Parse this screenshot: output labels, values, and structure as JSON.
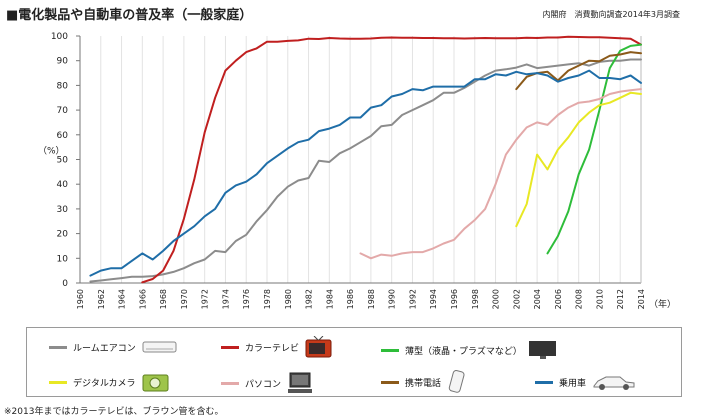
{
  "header": {
    "title": "■電化製品や自動車の普及率（一般家庭）",
    "source": "内閣府　消費動向調査2014年3月調査"
  },
  "footnote": "※2013年まではカラーテレビは、ブラウン管を含む。",
  "chart_data": {
    "type": "line",
    "title": "■電化製品や自動車の普及率（一般家庭）",
    "ylabel": "（%）",
    "xlabel": "（年）",
    "xlim": [
      1960,
      2014
    ],
    "ylim": [
      0,
      100
    ],
    "x_ticks": [
      1960,
      1962,
      1964,
      1966,
      1968,
      1970,
      1972,
      1974,
      1976,
      1978,
      1980,
      1982,
      1984,
      1986,
      1988,
      1990,
      1992,
      1994,
      1996,
      1998,
      2000,
      2002,
      2004,
      2006,
      2008,
      2010,
      2012,
      2014
    ],
    "y_ticks": [
      0,
      10,
      20,
      30,
      40,
      50,
      60,
      70,
      80,
      90,
      100
    ],
    "grid": "vertical",
    "legend_position": "bottom",
    "series": [
      {
        "name": "ルームエアコン",
        "color": "#8c8c8c",
        "icon": "air-conditioner-icon",
        "points": [
          [
            1961,
            0.6
          ],
          [
            1962,
            1
          ],
          [
            1963,
            1.5
          ],
          [
            1964,
            2
          ],
          [
            1965,
            2.5
          ],
          [
            1966,
            2.5
          ],
          [
            1967,
            2.8
          ],
          [
            1968,
            3.5
          ],
          [
            1969,
            4.5
          ],
          [
            1970,
            6
          ],
          [
            1971,
            8
          ],
          [
            1972,
            9.5
          ],
          [
            1973,
            13
          ],
          [
            1974,
            12.5
          ],
          [
            1975,
            17
          ],
          [
            1976,
            19.5
          ],
          [
            1977,
            25
          ],
          [
            1978,
            29.5
          ],
          [
            1979,
            35
          ],
          [
            1980,
            39
          ],
          [
            1981,
            41.5
          ],
          [
            1982,
            42.5
          ],
          [
            1983,
            49.5
          ],
          [
            1984,
            49
          ],
          [
            1985,
            52.5
          ],
          [
            1986,
            54.5
          ],
          [
            1987,
            57
          ],
          [
            1988,
            59.5
          ],
          [
            1989,
            63.5
          ],
          [
            1990,
            64
          ],
          [
            1991,
            68
          ],
          [
            1992,
            70
          ],
          [
            1993,
            72
          ],
          [
            1994,
            74
          ],
          [
            1995,
            77
          ],
          [
            1996,
            77
          ],
          [
            1997,
            79
          ],
          [
            1998,
            81.5
          ],
          [
            1999,
            84
          ],
          [
            2000,
            86
          ],
          [
            2001,
            86.5
          ],
          [
            2002,
            87.2
          ],
          [
            2003,
            88.5
          ],
          [
            2004,
            87
          ],
          [
            2005,
            87.5
          ],
          [
            2006,
            88
          ],
          [
            2007,
            88.5
          ],
          [
            2008,
            89
          ],
          [
            2009,
            88
          ],
          [
            2010,
            89.5
          ],
          [
            2011,
            90
          ],
          [
            2012,
            90
          ],
          [
            2013,
            90.5
          ],
          [
            2014,
            90.5
          ]
        ]
      },
      {
        "name": "カラーテレビ",
        "color": "#c01f1f",
        "icon": "color-tv-icon",
        "points": [
          [
            1966,
            0.3
          ],
          [
            1967,
            1.6
          ],
          [
            1968,
            5
          ],
          [
            1969,
            13
          ],
          [
            1970,
            26
          ],
          [
            1971,
            42
          ],
          [
            1972,
            61
          ],
          [
            1973,
            75
          ],
          [
            1974,
            86
          ],
          [
            1975,
            90
          ],
          [
            1976,
            93.5
          ],
          [
            1977,
            95
          ],
          [
            1978,
            97.7
          ],
          [
            1979,
            97.7
          ],
          [
            1980,
            98
          ],
          [
            1981,
            98.2
          ],
          [
            1982,
            98.9
          ],
          [
            1983,
            98.8
          ],
          [
            1984,
            99.2
          ],
          [
            1985,
            99
          ],
          [
            1986,
            98.9
          ],
          [
            1987,
            98.9
          ],
          [
            1988,
            99
          ],
          [
            1989,
            99.3
          ],
          [
            1990,
            99.4
          ],
          [
            1991,
            99.3
          ],
          [
            1992,
            99.3
          ],
          [
            1993,
            99.2
          ],
          [
            1994,
            99.2
          ],
          [
            1995,
            99.1
          ],
          [
            1996,
            99.1
          ],
          [
            1997,
            99
          ],
          [
            1998,
            99.1
          ],
          [
            1999,
            99.2
          ],
          [
            2000,
            99.1
          ],
          [
            2001,
            99.1
          ],
          [
            2002,
            99.1
          ],
          [
            2003,
            99.3
          ],
          [
            2004,
            99.2
          ],
          [
            2005,
            99.4
          ],
          [
            2006,
            99.4
          ],
          [
            2007,
            99.7
          ],
          [
            2008,
            99.6
          ],
          [
            2009,
            99.5
          ],
          [
            2010,
            99.5
          ],
          [
            2011,
            99.3
          ],
          [
            2012,
            99.1
          ],
          [
            2013,
            98.9
          ],
          [
            2014,
            96.5
          ]
        ]
      },
      {
        "name": "薄型（液晶・プラズマなど）",
        "color": "#2ebd3a",
        "icon": "flat-tv-icon",
        "points": [
          [
            2005,
            12
          ],
          [
            2006,
            19
          ],
          [
            2007,
            29
          ],
          [
            2008,
            44
          ],
          [
            2009,
            54
          ],
          [
            2010,
            70
          ],
          [
            2011,
            87
          ],
          [
            2012,
            94
          ],
          [
            2013,
            96
          ],
          [
            2014,
            96.5
          ]
        ]
      },
      {
        "name": "デジタルカメラ",
        "color": "#e8e824",
        "icon": "digital-camera-icon",
        "points": [
          [
            2002,
            23
          ],
          [
            2003,
            32
          ],
          [
            2004,
            52
          ],
          [
            2005,
            46
          ],
          [
            2006,
            54
          ],
          [
            2007,
            59
          ],
          [
            2008,
            65
          ],
          [
            2009,
            69
          ],
          [
            2010,
            72
          ],
          [
            2011,
            73
          ],
          [
            2012,
            75
          ],
          [
            2013,
            77
          ],
          [
            2014,
            76.5
          ]
        ]
      },
      {
        "name": "パソコン",
        "color": "#e3a9a9",
        "icon": "pc-icon",
        "points": [
          [
            1987,
            12
          ],
          [
            1988,
            10
          ],
          [
            1989,
            11.5
          ],
          [
            1990,
            11
          ],
          [
            1991,
            12
          ],
          [
            1992,
            12.5
          ],
          [
            1993,
            12.5
          ],
          [
            1994,
            14
          ],
          [
            1995,
            16
          ],
          [
            1996,
            17.5
          ],
          [
            1997,
            22
          ],
          [
            1998,
            25.5
          ],
          [
            1999,
            30
          ],
          [
            2000,
            40
          ],
          [
            2001,
            52
          ],
          [
            2002,
            58
          ],
          [
            2003,
            63
          ],
          [
            2004,
            65
          ],
          [
            2005,
            64
          ],
          [
            2006,
            68
          ],
          [
            2007,
            71
          ],
          [
            2008,
            73
          ],
          [
            2009,
            73.5
          ],
          [
            2010,
            74.5
          ],
          [
            2011,
            76.5
          ],
          [
            2012,
            77.5
          ],
          [
            2013,
            78
          ],
          [
            2014,
            78.5
          ]
        ]
      },
      {
        "name": "携帯電話",
        "color": "#8b5a1a",
        "icon": "mobile-phone-icon",
        "points": [
          [
            2002,
            78.5
          ],
          [
            2003,
            83.5
          ],
          [
            2004,
            85
          ],
          [
            2005,
            85.5
          ],
          [
            2006,
            82
          ],
          [
            2007,
            86
          ],
          [
            2008,
            88
          ],
          [
            2009,
            90
          ],
          [
            2010,
            89.8
          ],
          [
            2011,
            92
          ],
          [
            2012,
            92.5
          ],
          [
            2013,
            93.5
          ],
          [
            2014,
            93
          ]
        ]
      },
      {
        "name": "乗用車",
        "color": "#1f6ea8",
        "icon": "car-icon",
        "points": [
          [
            1961,
            3
          ],
          [
            1962,
            5
          ],
          [
            1963,
            6
          ],
          [
            1964,
            6
          ],
          [
            1965,
            9
          ],
          [
            1966,
            12
          ],
          [
            1967,
            9.5
          ],
          [
            1968,
            13
          ],
          [
            1969,
            17
          ],
          [
            1970,
            20
          ],
          [
            1971,
            23
          ],
          [
            1972,
            27
          ],
          [
            1973,
            30
          ],
          [
            1974,
            36.5
          ],
          [
            1975,
            39.5
          ],
          [
            1976,
            41
          ],
          [
            1977,
            44
          ],
          [
            1978,
            48.5
          ],
          [
            1979,
            51.5
          ],
          [
            1980,
            54.5
          ],
          [
            1981,
            57
          ],
          [
            1982,
            58
          ],
          [
            1983,
            61.5
          ],
          [
            1984,
            62.5
          ],
          [
            1985,
            64
          ],
          [
            1986,
            67
          ],
          [
            1987,
            67
          ],
          [
            1988,
            71
          ],
          [
            1989,
            72
          ],
          [
            1990,
            75.5
          ],
          [
            1991,
            76.5
          ],
          [
            1992,
            78.5
          ],
          [
            1993,
            78
          ],
          [
            1994,
            79.5
          ],
          [
            1995,
            79.5
          ],
          [
            1996,
            79.5
          ],
          [
            1997,
            79.5
          ],
          [
            1998,
            82.5
          ],
          [
            1999,
            82.5
          ],
          [
            2000,
            84.5
          ],
          [
            2001,
            84
          ],
          [
            2002,
            85.5
          ],
          [
            2003,
            84.5
          ],
          [
            2004,
            85
          ],
          [
            2005,
            84
          ],
          [
            2006,
            81.5
          ],
          [
            2007,
            83
          ],
          [
            2008,
            84
          ],
          [
            2009,
            86
          ],
          [
            2010,
            83
          ],
          [
            2011,
            83
          ],
          [
            2012,
            82.5
          ],
          [
            2013,
            84
          ],
          [
            2014,
            81
          ]
        ]
      }
    ]
  }
}
